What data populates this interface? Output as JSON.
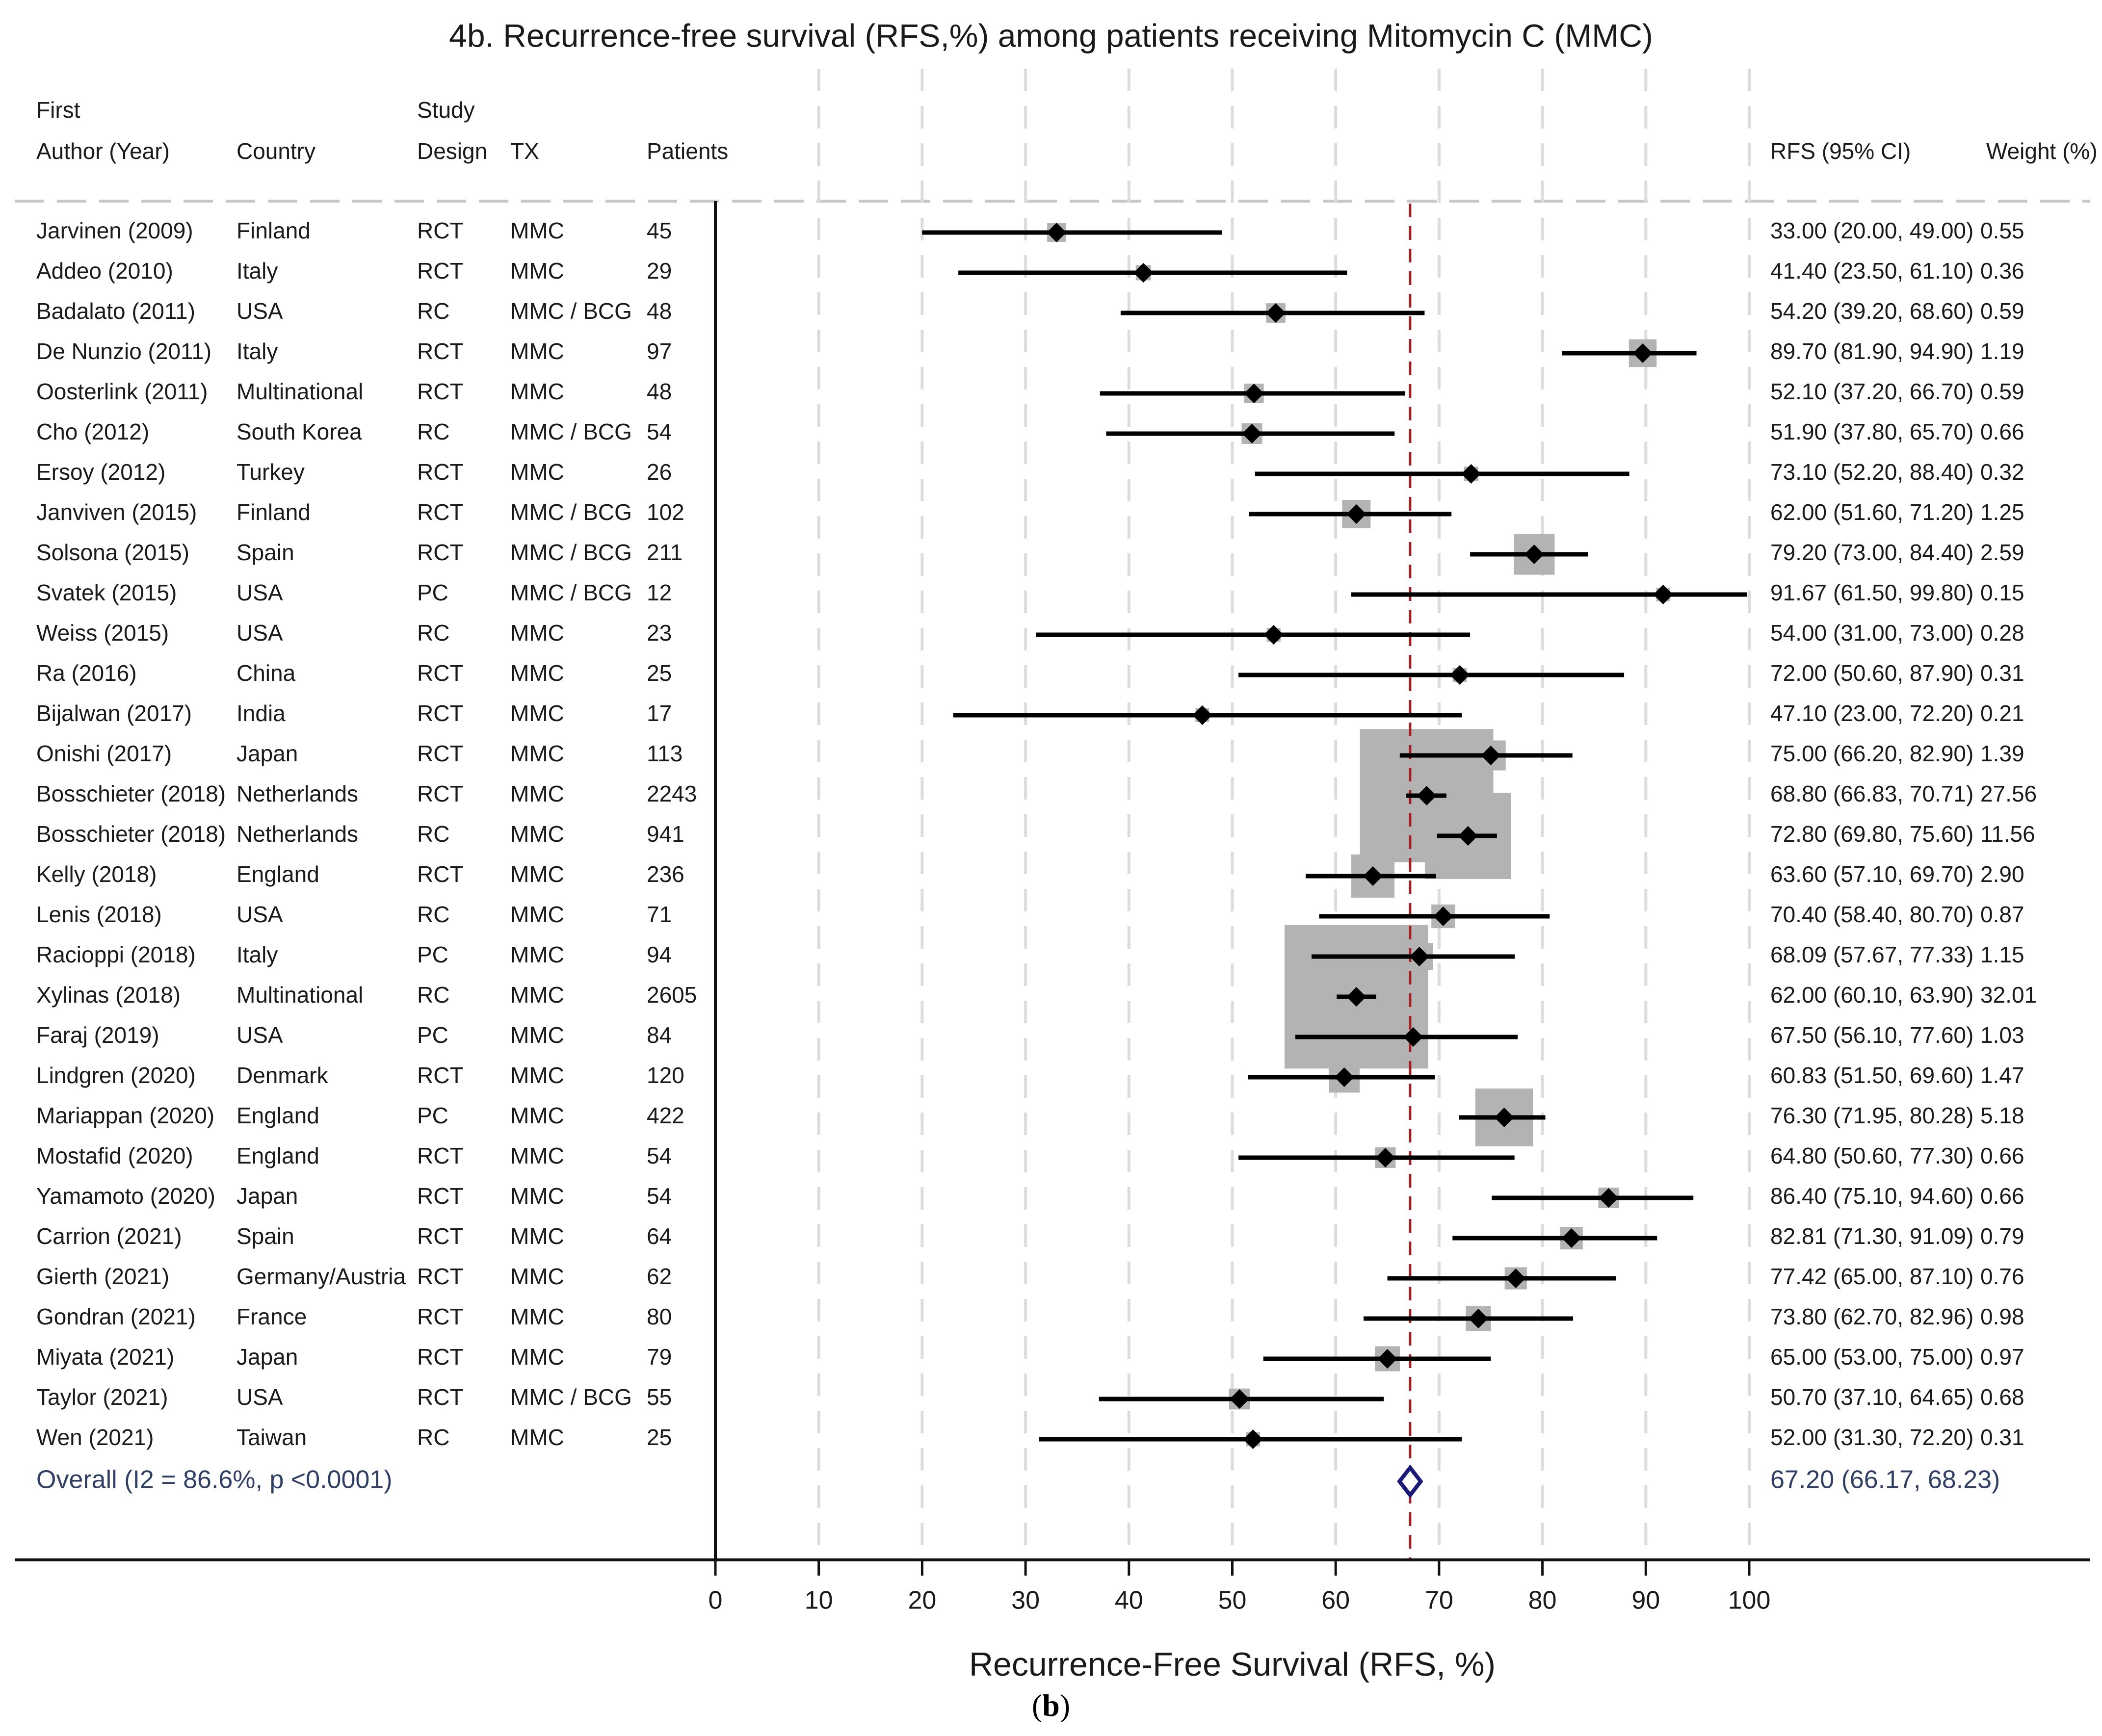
{
  "chart_data": {
    "type": "forest",
    "title": "4b. Recurrence-free survival (RFS,%) among patients receiving Mitomycin C (MMC)",
    "xlabel": "Recurrence-Free Survival (RFS, %)",
    "xlim": [
      0,
      100
    ],
    "xticks": [
      0,
      10,
      20,
      30,
      40,
      50,
      60,
      70,
      80,
      90,
      100
    ],
    "grid": "vertical dashed",
    "reference_line": 67.2,
    "headers": {
      "first_line": [
        "First",
        "",
        "Study",
        "",
        ""
      ],
      "author": "Author (Year)",
      "country": "Country",
      "design": "Design",
      "tx": "TX",
      "patients": "Patients",
      "rfs": "RFS (95% CI)",
      "weight": "Weight (%)"
    },
    "studies": [
      {
        "author": "Jarvinen (2009)",
        "country": "Finland",
        "design": "RCT",
        "tx": "MMC",
        "patients": "45",
        "rfs": 33.0,
        "lo": 20.0,
        "hi": 49.0,
        "ci_text": "33.00 (20.00, 49.00)",
        "weight": 0.55,
        "weight_text": "0.55"
      },
      {
        "author": "Addeo (2010)",
        "country": "Italy",
        "design": "RCT",
        "tx": "MMC",
        "patients": "29",
        "rfs": 41.4,
        "lo": 23.5,
        "hi": 61.1,
        "ci_text": "41.40 (23.50, 61.10)",
        "weight": 0.36,
        "weight_text": "0.36"
      },
      {
        "author": "Badalato (2011)",
        "country": "USA",
        "design": "RC",
        "tx": "MMC / BCG",
        "patients": "48",
        "rfs": 54.2,
        "lo": 39.2,
        "hi": 68.6,
        "ci_text": "54.20 (39.20, 68.60)",
        "weight": 0.59,
        "weight_text": "0.59"
      },
      {
        "author": "De Nunzio (2011)",
        "country": "Italy",
        "design": "RCT",
        "tx": "MMC",
        "patients": "97",
        "rfs": 89.7,
        "lo": 81.9,
        "hi": 94.9,
        "ci_text": "89.70 (81.90, 94.90)",
        "weight": 1.19,
        "weight_text": "1.19"
      },
      {
        "author": "Oosterlink (2011)",
        "country": "Multinational",
        "design": "RCT",
        "tx": "MMC",
        "patients": "48",
        "rfs": 52.1,
        "lo": 37.2,
        "hi": 66.7,
        "ci_text": "52.10 (37.20, 66.70)",
        "weight": 0.59,
        "weight_text": "0.59"
      },
      {
        "author": "Cho (2012)",
        "country": "South Korea",
        "design": "RC",
        "tx": "MMC / BCG",
        "patients": "54",
        "rfs": 51.9,
        "lo": 37.8,
        "hi": 65.7,
        "ci_text": "51.90 (37.80, 65.70)",
        "weight": 0.66,
        "weight_text": "0.66"
      },
      {
        "author": "Ersoy (2012)",
        "country": "Turkey",
        "design": "RCT",
        "tx": "MMC",
        "patients": "26",
        "rfs": 73.1,
        "lo": 52.2,
        "hi": 88.4,
        "ci_text": "73.10 (52.20, 88.40)",
        "weight": 0.32,
        "weight_text": "0.32"
      },
      {
        "author": "Janviven (2015)",
        "country": "Finland",
        "design": "RCT",
        "tx": "MMC / BCG",
        "patients": "102",
        "rfs": 62.0,
        "lo": 51.6,
        "hi": 71.2,
        "ci_text": "62.00 (51.60, 71.20)",
        "weight": 1.25,
        "weight_text": "1.25"
      },
      {
        "author": "Solsona (2015)",
        "country": "Spain",
        "design": "RCT",
        "tx": "MMC / BCG",
        "patients": "211",
        "rfs": 79.2,
        "lo": 73.0,
        "hi": 84.4,
        "ci_text": "79.20 (73.00, 84.40)",
        "weight": 2.59,
        "weight_text": "2.59"
      },
      {
        "author": "Svatek (2015)",
        "country": "USA",
        "design": "PC",
        "tx": "MMC / BCG",
        "patients": "12",
        "rfs": 91.67,
        "lo": 61.5,
        "hi": 99.8,
        "ci_text": "91.67 (61.50, 99.80)",
        "weight": 0.15,
        "weight_text": "0.15"
      },
      {
        "author": "Weiss (2015)",
        "country": "USA",
        "design": "RC",
        "tx": "MMC",
        "patients": "23",
        "rfs": 54.0,
        "lo": 31.0,
        "hi": 73.0,
        "ci_text": "54.00 (31.00, 73.00)",
        "weight": 0.28,
        "weight_text": "0.28"
      },
      {
        "author": "Ra (2016)",
        "country": "China",
        "design": "RCT",
        "tx": "MMC",
        "patients": "25",
        "rfs": 72.0,
        "lo": 50.6,
        "hi": 87.9,
        "ci_text": "72.00 (50.60, 87.90)",
        "weight": 0.31,
        "weight_text": "0.31"
      },
      {
        "author": "Bijalwan (2017)",
        "country": "India",
        "design": "RCT",
        "tx": "MMC",
        "patients": "17",
        "rfs": 47.1,
        "lo": 23.0,
        "hi": 72.2,
        "ci_text": "47.10 (23.00, 72.20)",
        "weight": 0.21,
        "weight_text": "0.21"
      },
      {
        "author": "Onishi (2017)",
        "country": "Japan",
        "design": "RCT",
        "tx": "MMC",
        "patients": "113",
        "rfs": 75.0,
        "lo": 66.2,
        "hi": 82.9,
        "ci_text": "75.00 (66.20, 82.90)",
        "weight": 1.39,
        "weight_text": "1.39"
      },
      {
        "author": "Bosschieter (2018)",
        "country": "Netherlands",
        "design": "RCT",
        "tx": "MMC",
        "patients": "2243",
        "rfs": 68.8,
        "lo": 66.83,
        "hi": 70.71,
        "ci_text": "68.80 (66.83, 70.71)",
        "weight": 27.56,
        "weight_text": "27.56"
      },
      {
        "author": "Bosschieter (2018)",
        "country": "Netherlands",
        "design": "RC",
        "tx": "MMC",
        "patients": "941",
        "rfs": 72.8,
        "lo": 69.8,
        "hi": 75.6,
        "ci_text": "72.80 (69.80, 75.60)",
        "weight": 11.56,
        "weight_text": "11.56"
      },
      {
        "author": "Kelly (2018)",
        "country": "England",
        "design": "RCT",
        "tx": "MMC",
        "patients": "236",
        "rfs": 63.6,
        "lo": 57.1,
        "hi": 69.7,
        "ci_text": "63.60 (57.10, 69.70)",
        "weight": 2.9,
        "weight_text": "2.90"
      },
      {
        "author": "Lenis (2018)",
        "country": "USA",
        "design": "RC",
        "tx": "MMC",
        "patients": "71",
        "rfs": 70.4,
        "lo": 58.4,
        "hi": 80.7,
        "ci_text": "70.40 (58.40, 80.70)",
        "weight": 0.87,
        "weight_text": "0.87"
      },
      {
        "author": "Racioppi (2018)",
        "country": "Italy",
        "design": "PC",
        "tx": "MMC",
        "patients": "94",
        "rfs": 68.09,
        "lo": 57.67,
        "hi": 77.33,
        "ci_text": "68.09 (57.67, 77.33)",
        "weight": 1.15,
        "weight_text": "1.15"
      },
      {
        "author": "Xylinas (2018)",
        "country": "Multinational",
        "design": "RC",
        "tx": "MMC",
        "patients": "2605",
        "rfs": 62.0,
        "lo": 60.1,
        "hi": 63.9,
        "ci_text": "62.00 (60.10, 63.90)",
        "weight": 32.01,
        "weight_text": "32.01"
      },
      {
        "author": "Faraj (2019)",
        "country": "USA",
        "design": "PC",
        "tx": "MMC",
        "patients": "84",
        "rfs": 67.5,
        "lo": 56.1,
        "hi": 77.6,
        "ci_text": "67.50 (56.10, 77.60)",
        "weight": 1.03,
        "weight_text": "1.03"
      },
      {
        "author": "Lindgren (2020)",
        "country": "Denmark",
        "design": "RCT",
        "tx": "MMC",
        "patients": "120",
        "rfs": 60.83,
        "lo": 51.5,
        "hi": 69.6,
        "ci_text": "60.83 (51.50, 69.60)",
        "weight": 1.47,
        "weight_text": "1.47"
      },
      {
        "author": "Mariappan (2020)",
        "country": "England",
        "design": "PC",
        "tx": "MMC",
        "patients": "422",
        "rfs": 76.3,
        "lo": 71.95,
        "hi": 80.28,
        "ci_text": "76.30 (71.95, 80.28)",
        "weight": 5.18,
        "weight_text": "5.18"
      },
      {
        "author": "Mostafid (2020)",
        "country": "England",
        "design": "RCT",
        "tx": "MMC",
        "patients": "54",
        "rfs": 64.8,
        "lo": 50.6,
        "hi": 77.3,
        "ci_text": "64.80 (50.60, 77.30)",
        "weight": 0.66,
        "weight_text": "0.66"
      },
      {
        "author": "Yamamoto (2020)",
        "country": "Japan",
        "design": "RCT",
        "tx": "MMC",
        "patients": "54",
        "rfs": 86.4,
        "lo": 75.1,
        "hi": 94.6,
        "ci_text": "86.40 (75.10, 94.60)",
        "weight": 0.66,
        "weight_text": "0.66"
      },
      {
        "author": "Carrion (2021)",
        "country": "Spain",
        "design": "RCT",
        "tx": "MMC",
        "patients": "64",
        "rfs": 82.81,
        "lo": 71.3,
        "hi": 91.09,
        "ci_text": "82.81 (71.30, 91.09)",
        "weight": 0.79,
        "weight_text": "0.79"
      },
      {
        "author": "Gierth (2021)",
        "country": "Germany/Austria",
        "design": "RCT",
        "tx": "MMC",
        "patients": "62",
        "rfs": 77.42,
        "lo": 65.0,
        "hi": 87.1,
        "ci_text": "77.42 (65.00, 87.10)",
        "weight": 0.76,
        "weight_text": "0.76"
      },
      {
        "author": "Gondran (2021)",
        "country": "France",
        "design": "RCT",
        "tx": "MMC",
        "patients": "80",
        "rfs": 73.8,
        "lo": 62.7,
        "hi": 82.96,
        "ci_text": "73.80 (62.70, 82.96)",
        "weight": 0.98,
        "weight_text": "0.98"
      },
      {
        "author": "Miyata (2021)",
        "country": "Japan",
        "design": "RCT",
        "tx": "MMC",
        "patients": "79",
        "rfs": 65.0,
        "lo": 53.0,
        "hi": 75.0,
        "ci_text": "65.00 (53.00, 75.00)",
        "weight": 0.97,
        "weight_text": "0.97"
      },
      {
        "author": "Taylor (2021)",
        "country": "USA",
        "design": "RCT",
        "tx": "MMC / BCG",
        "patients": "55",
        "rfs": 50.7,
        "lo": 37.1,
        "hi": 64.65,
        "ci_text": "50.70 (37.10, 64.65)",
        "weight": 0.68,
        "weight_text": "0.68"
      },
      {
        "author": "Wen (2021)",
        "country": "Taiwan",
        "design": "RC",
        "tx": "MMC",
        "patients": "25",
        "rfs": 52.0,
        "lo": 31.3,
        "hi": 72.2,
        "ci_text": "52.00 (31.30, 72.20)",
        "weight": 0.31,
        "weight_text": "0.31"
      }
    ],
    "overall": {
      "label": "Overall  (I2 = 86.6%, p <0.0001)",
      "rfs": 67.2,
      "lo": 66.17,
      "hi": 68.23,
      "ci_text": "67.20 (66.17, 68.23)"
    }
  },
  "caption": {
    "letter": "b"
  },
  "colors": {
    "text": "#1a1a1a",
    "marker": "#000000",
    "weight_box": "#b3b3b3",
    "grid": "#dcdcdc",
    "reference": "#a31f24",
    "overall_text": "#2f3f66",
    "overall_diamond": "#1a1a7a"
  }
}
